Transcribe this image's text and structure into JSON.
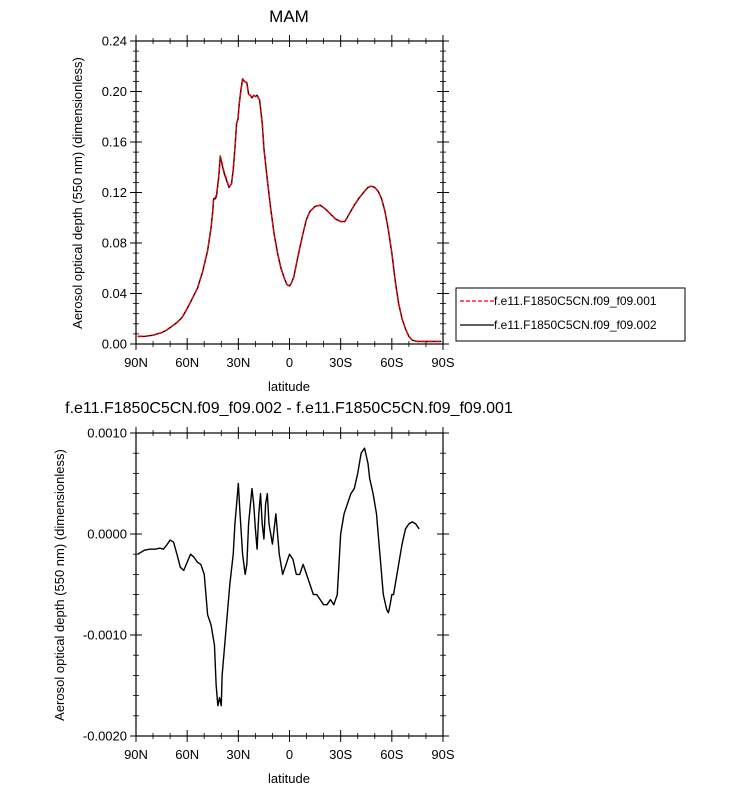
{
  "chart_data": [
    {
      "type": "line",
      "title": "MAM",
      "xlabel": "latitude",
      "ylabel": "Aerosol optical depth (550 nm) (dimensionless)",
      "xlim": [
        90,
        -90
      ],
      "ylim": [
        0,
        0.24
      ],
      "x_ticks": [
        90,
        60,
        30,
        0,
        -30,
        -60,
        -90
      ],
      "x_tick_labels": [
        "90N",
        "60N",
        "30N",
        "0",
        "30S",
        "60S",
        "90S"
      ],
      "y_ticks": [
        0,
        0.04,
        0.08,
        0.12,
        0.16,
        0.2,
        0.24
      ],
      "y_tick_labels": [
        "0.00",
        "0.04",
        "0.08",
        "0.12",
        "0.16",
        "0.20",
        "0.24"
      ],
      "legend_position": "right",
      "series": [
        {
          "name": "f.e11.F1850C5CN.f09_f09.001",
          "color": "#e8000b",
          "style": "dashed",
          "x": [
            89,
            85,
            80,
            75,
            72,
            69,
            66,
            63,
            60,
            57,
            54,
            51,
            48,
            46,
            45,
            44.5,
            43.5,
            42.8,
            41.5,
            40.6,
            39.7,
            38.5,
            37,
            35.5,
            34,
            33,
            32,
            31,
            30.2,
            29.5,
            28.5,
            27.5,
            26.5,
            25,
            24,
            23,
            22,
            21,
            20,
            19,
            17.5,
            16,
            15,
            13,
            11,
            9,
            7,
            5,
            3,
            1.5,
            0,
            -1,
            -2.5,
            -4,
            -6,
            -8,
            -10,
            -12,
            -15,
            -18,
            -21,
            -24,
            -27,
            -30,
            -32.5,
            -35,
            -38,
            -41,
            -44,
            -46,
            -48,
            -50,
            -52,
            -54,
            -56,
            -58,
            -60,
            -62,
            -64,
            -66,
            -68,
            -70,
            -72,
            -75,
            -80,
            -85,
            -89
          ],
          "y": [
            0.006,
            0.006,
            0.007,
            0.009,
            0.011,
            0.014,
            0.017,
            0.021,
            0.028,
            0.036,
            0.044,
            0.057,
            0.074,
            0.092,
            0.105,
            0.115,
            0.116,
            0.118,
            0.133,
            0.149,
            0.144,
            0.137,
            0.131,
            0.124,
            0.127,
            0.138,
            0.155,
            0.175,
            0.178,
            0.19,
            0.201,
            0.21,
            0.208,
            0.207,
            0.198,
            0.197,
            0.195,
            0.197,
            0.196,
            0.197,
            0.193,
            0.175,
            0.155,
            0.13,
            0.107,
            0.087,
            0.072,
            0.06,
            0.052,
            0.047,
            0.046,
            0.048,
            0.053,
            0.063,
            0.076,
            0.088,
            0.099,
            0.105,
            0.109,
            0.11,
            0.107,
            0.103,
            0.099,
            0.097,
            0.097,
            0.103,
            0.11,
            0.116,
            0.121,
            0.124,
            0.125,
            0.124,
            0.121,
            0.115,
            0.105,
            0.09,
            0.072,
            0.05,
            0.032,
            0.02,
            0.012,
            0.006,
            0.003,
            0.002,
            0.002,
            0.002,
            0.002
          ]
        },
        {
          "name": "f.e11.F1850C5CN.f09_f09.002",
          "color": "#000000",
          "style": "solid",
          "x": [
            89,
            85,
            80,
            75,
            72,
            69,
            66,
            63,
            60,
            57,
            54,
            51,
            48,
            46,
            45,
            44.5,
            43.5,
            42.8,
            41.5,
            40.6,
            39.7,
            38.5,
            37,
            35.5,
            34,
            33,
            32,
            31,
            30.2,
            29.5,
            28.5,
            27.5,
            26.5,
            25,
            24,
            23,
            22,
            21,
            20,
            19,
            17.5,
            16,
            15,
            13,
            11,
            9,
            7,
            5,
            3,
            1.5,
            0,
            -1,
            -2.5,
            -4,
            -6,
            -8,
            -10,
            -12,
            -15,
            -18,
            -21,
            -24,
            -27,
            -30,
            -32.5,
            -35,
            -38,
            -41,
            -44,
            -46,
            -48,
            -50,
            -52,
            -54,
            -56,
            -58,
            -60,
            -62,
            -64,
            -66,
            -68,
            -70,
            -72,
            -75,
            -80,
            -85,
            -89
          ],
          "y": [
            0.006,
            0.006,
            0.007,
            0.009,
            0.011,
            0.014,
            0.017,
            0.021,
            0.028,
            0.036,
            0.044,
            0.057,
            0.074,
            0.092,
            0.105,
            0.115,
            0.115,
            0.117,
            0.132,
            0.148,
            0.143,
            0.136,
            0.13,
            0.124,
            0.127,
            0.138,
            0.155,
            0.175,
            0.178,
            0.19,
            0.201,
            0.21,
            0.208,
            0.207,
            0.198,
            0.197,
            0.195,
            0.197,
            0.196,
            0.197,
            0.193,
            0.175,
            0.155,
            0.13,
            0.107,
            0.087,
            0.072,
            0.06,
            0.052,
            0.047,
            0.046,
            0.048,
            0.053,
            0.063,
            0.076,
            0.088,
            0.099,
            0.105,
            0.109,
            0.11,
            0.107,
            0.103,
            0.099,
            0.097,
            0.097,
            0.103,
            0.11,
            0.116,
            0.121,
            0.124,
            0.125,
            0.124,
            0.121,
            0.115,
            0.105,
            0.09,
            0.072,
            0.05,
            0.032,
            0.02,
            0.012,
            0.006,
            0.003,
            0.002,
            0.002,
            0.002,
            0.002
          ]
        }
      ]
    },
    {
      "type": "line",
      "title": "f.e11.F1850C5CN.f09_f09.002 - f.e11.F1850C5CN.f09_f09.001",
      "xlabel": "latitude",
      "ylabel": "Aerosol optical depth (550 nm) (dimensionless)",
      "xlim": [
        90,
        -90
      ],
      "ylim": [
        -0.002,
        0.001
      ],
      "x_ticks": [
        90,
        60,
        30,
        0,
        -30,
        -60,
        -90
      ],
      "x_tick_labels": [
        "90N",
        "60N",
        "30N",
        "0",
        "30S",
        "60S",
        "90S"
      ],
      "y_ticks": [
        -0.002,
        -0.001,
        0,
        0.001
      ],
      "y_tick_labels": [
        "-0.0020",
        "-0.0010",
        "0.0000",
        "0.0010"
      ],
      "series": [
        {
          "color": "#000000",
          "style": "solid",
          "x": [
            89,
            87,
            85,
            82,
            79,
            76,
            74,
            72,
            70,
            68,
            66,
            64,
            62,
            60,
            58,
            56,
            54,
            52,
            50,
            48,
            46,
            44,
            43,
            42,
            41,
            40,
            39.5,
            38,
            37,
            35,
            33,
            32,
            31,
            30,
            29,
            27.5,
            26,
            25,
            24,
            22,
            21,
            20,
            19,
            18,
            17,
            16,
            15,
            14,
            13,
            12,
            10,
            8,
            6,
            4,
            2,
            0,
            -2,
            -4,
            -6,
            -8,
            -10,
            -12,
            -14,
            -16,
            -18,
            -20,
            -22,
            -24,
            -26,
            -28,
            -29,
            -30,
            -32,
            -34,
            -36,
            -38,
            -40,
            -42,
            -44,
            -46,
            -47,
            -49,
            -51,
            -53,
            -55,
            -57,
            -58,
            -59,
            -60,
            -61,
            -62,
            -64,
            -66,
            -68,
            -70,
            -72,
            -74,
            -76
          ],
          "y": [
            -0.0002,
            -0.00018,
            -0.00016,
            -0.00015,
            -0.00015,
            -0.00014,
            -0.00015,
            -0.00011,
            -6e-05,
            -8e-05,
            -0.0002,
            -0.00033,
            -0.00036,
            -0.00028,
            -0.0002,
            -0.00023,
            -0.00028,
            -0.0003,
            -0.0004,
            -0.0008,
            -0.0009,
            -0.0011,
            -0.0015,
            -0.0017,
            -0.00162,
            -0.0017,
            -0.0014,
            -0.0011,
            -0.0009,
            -0.0005,
            -0.0002,
            0.0001,
            0.0003,
            0.0005,
            0.0002,
            -0.0002,
            -0.0004,
            -0.0003,
            0.0001,
            0.00045,
            0.0003,
            5e-05,
            -0.00015,
            0.0002,
            0.0004,
            0.0001,
            -5e-05,
            0.0003,
            0.0004,
            0.0001,
            -0.0001,
            0.0002,
            -0.0002,
            -0.0004,
            -0.0003,
            -0.0002,
            -0.00025,
            -0.0004,
            -0.0004,
            -0.0003,
            -0.0004,
            -0.0005,
            -0.0006,
            -0.0006,
            -0.00065,
            -0.0007,
            -0.0007,
            -0.00065,
            -0.0007,
            -0.0006,
            -0.0003,
            0,
            0.0002,
            0.0003,
            0.0004,
            0.00045,
            0.0006,
            0.0008,
            0.00085,
            0.0007,
            0.00055,
            0.0004,
            0.0002,
            -0.0002,
            -0.0006,
            -0.00075,
            -0.00078,
            -0.0007,
            -0.0006,
            -0.0006,
            -0.0005,
            -0.0003,
            -0.0001,
            5e-05,
            0.0001,
            0.00012,
            0.0001,
            5e-05
          ]
        }
      ]
    }
  ]
}
